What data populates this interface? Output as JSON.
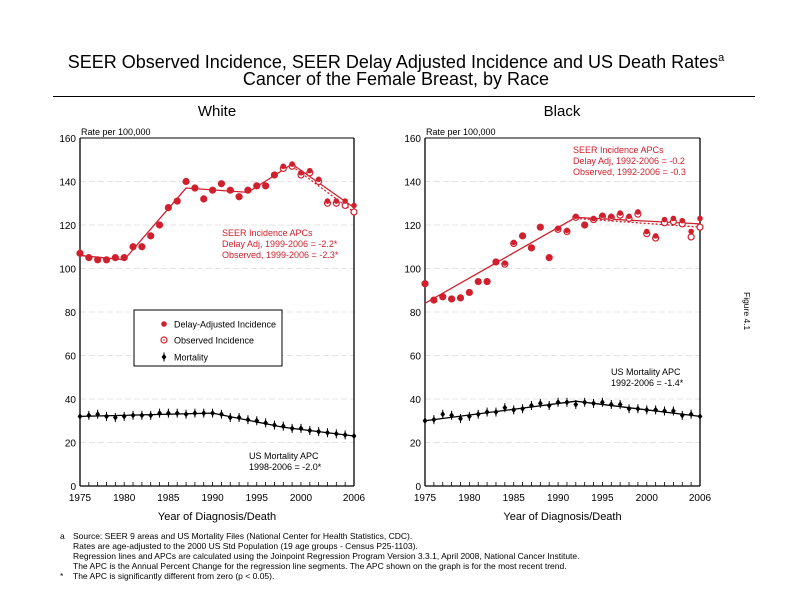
{
  "page": {
    "title_line1": "SEER Observed Incidence, SEER Delay Adjusted Incidence and US Death Rates",
    "title_superscript": "a",
    "title_line2": "Cancer of the Female Breast, by Race",
    "figure_label": "Figure 4.1",
    "footnotes": [
      {
        "mark": "a",
        "text": "Source: SEER 9 areas and US Mortality Files (National Center for Health Statistics, CDC)."
      },
      {
        "mark": "",
        "text": "Rates are age-adjusted to the 2000 US Std Population (19 age groups - Census P25-1103)."
      },
      {
        "mark": "",
        "text": "Regression lines and APCs are calculated using the Joinpoint Regression Program Version 3.3.1, April 2008, National Cancer Institute."
      },
      {
        "mark": "",
        "text": "The APC is the Annual Percent Change for the regression line segments. The APC shown on the graph is for the most recent trend."
      },
      {
        "mark": "*",
        "text": "The APC is significantly different from zero (p < 0.05)."
      }
    ]
  },
  "colors": {
    "incidence": "#d0202e",
    "mortality": "#000000",
    "grid": "#e4e4e4"
  },
  "chart_data": [
    {
      "type": "scatter",
      "title": "White",
      "ylabel": "Rate per 100,000",
      "xlabel": "Year of Diagnosis/Death",
      "xlim": [
        1975,
        2006
      ],
      "ylim": [
        0,
        160
      ],
      "xticks": [
        1975,
        1980,
        1985,
        1990,
        1995,
        2000,
        2006
      ],
      "yticks": [
        0,
        20,
        40,
        60,
        80,
        100,
        120,
        140,
        160
      ],
      "grid": true,
      "legend": {
        "placement": "center-left",
        "entries": [
          "Delay-Adjusted Incidence",
          "Observed Incidence",
          "Mortality"
        ]
      },
      "annotations": {
        "incidence": [
          "SEER Incidence APCs",
          "Delay Adj, 1999-2006 = -2.2*",
          "Observed, 1999-2006 = -2.3*"
        ],
        "mortality": [
          "US Mortality APC",
          "1998-2006 = -2.0*"
        ]
      },
      "x": [
        1975,
        1976,
        1977,
        1978,
        1979,
        1980,
        1981,
        1982,
        1983,
        1984,
        1985,
        1986,
        1987,
        1988,
        1989,
        1990,
        1991,
        1992,
        1993,
        1994,
        1995,
        1996,
        1997,
        1998,
        1999,
        2000,
        2001,
        2002,
        2003,
        2004,
        2005,
        2006
      ],
      "series": [
        {
          "name": "Delay-Adjusted Incidence",
          "values": [
            107,
            105,
            104,
            104,
            105,
            105,
            110,
            110,
            115,
            120,
            128,
            131,
            140,
            137,
            132,
            136,
            139,
            136,
            133,
            136,
            138,
            138,
            143,
            147,
            148,
            144,
            145,
            141,
            131,
            131,
            131,
            129
          ]
        },
        {
          "name": "Observed Incidence",
          "values": [
            107,
            105,
            104,
            104,
            105,
            105,
            110,
            110,
            115,
            120,
            128,
            131,
            140,
            137,
            132,
            136,
            139,
            136,
            133,
            136,
            138,
            138,
            143,
            146,
            147,
            143,
            144,
            140,
            130,
            130,
            129,
            126
          ]
        },
        {
          "name": "Mortality",
          "values": [
            32,
            32.5,
            33,
            32,
            31.5,
            32,
            32.5,
            32.5,
            32.5,
            33.5,
            33.5,
            33.5,
            33,
            33.5,
            33.5,
            33.5,
            33,
            31.5,
            31.5,
            30.5,
            30,
            29,
            28,
            27.5,
            26.5,
            26.5,
            25.5,
            25,
            24.5,
            24,
            23.5,
            23
          ]
        }
      ],
      "trend_lines": [
        {
          "name": "Delay-Adjusted Incidence trend",
          "style": "solid",
          "points": [
            [
              1975,
              106
            ],
            [
              1980,
              104
            ],
            [
              1987,
              137
            ],
            [
              1994,
              135
            ],
            [
              1999,
              148
            ],
            [
              2006,
              128
            ]
          ]
        },
        {
          "name": "Observed Incidence trend",
          "style": "dotted",
          "points": [
            [
              1999,
              147
            ],
            [
              2006,
              126
            ]
          ]
        },
        {
          "name": "Mortality trend",
          "style": "solid",
          "points": [
            [
              1975,
              32
            ],
            [
              1990,
              33.5
            ],
            [
              1998,
              27
            ],
            [
              2006,
              23
            ]
          ]
        }
      ]
    },
    {
      "type": "scatter",
      "title": "Black",
      "ylabel": "Rate per 100,000",
      "xlabel": "Year of Diagnosis/Death",
      "xlim": [
        1975,
        2006
      ],
      "ylim": [
        0,
        160
      ],
      "xticks": [
        1975,
        1980,
        1985,
        1990,
        1995,
        2000,
        2006
      ],
      "yticks": [
        0,
        20,
        40,
        60,
        80,
        100,
        120,
        140,
        160
      ],
      "grid": true,
      "annotations": {
        "incidence": [
          "SEER Incidence APCs",
          "Delay Adj, 1992-2006 = -0.2",
          "Observed, 1992-2006 = -0.3"
        ],
        "mortality": [
          "US Mortality APC",
          "1992-2006 = -1.4*"
        ]
      },
      "x": [
        1975,
        1976,
        1977,
        1978,
        1979,
        1980,
        1981,
        1982,
        1983,
        1984,
        1985,
        1986,
        1987,
        1988,
        1989,
        1990,
        1991,
        1992,
        1993,
        1994,
        1995,
        1996,
        1997,
        1998,
        1999,
        2000,
        2001,
        2002,
        2003,
        2004,
        2005,
        2006
      ],
      "series": [
        {
          "name": "Delay-Adjusted Incidence",
          "values": [
            93,
            85.5,
            87,
            86,
            86.5,
            89,
            94,
            94,
            103,
            102.5,
            112,
            115,
            109.5,
            119,
            105,
            118.5,
            117.5,
            124,
            120,
            123,
            124.5,
            124,
            125.5,
            124,
            126,
            117,
            115,
            122.5,
            123,
            122,
            117,
            123
          ]
        },
        {
          "name": "Observed Incidence",
          "values": [
            93,
            85.5,
            87,
            86,
            86.5,
            89,
            94,
            94,
            103,
            102,
            111.5,
            115,
            109.5,
            119,
            105,
            118,
            117,
            123.5,
            120,
            122.5,
            124,
            123.5,
            124.5,
            123,
            125,
            116,
            114,
            121,
            121.5,
            120.5,
            114.5,
            119
          ]
        },
        {
          "name": "Mortality",
          "values": [
            30,
            30.5,
            33,
            32.5,
            31,
            32,
            33,
            34,
            34,
            36,
            35,
            35.5,
            37,
            38,
            37,
            38.5,
            38.5,
            37.5,
            38.5,
            38,
            38.5,
            37.5,
            37.5,
            35.5,
            35.5,
            35,
            35,
            34.5,
            34.5,
            32.5,
            33,
            32
          ]
        }
      ],
      "trend_lines": [
        {
          "name": "Delay-Adjusted Incidence trend",
          "style": "solid",
          "points": [
            [
              1975,
              84
            ],
            [
              1992,
              123.5
            ],
            [
              2006,
              120.5
            ]
          ]
        },
        {
          "name": "Observed Incidence trend",
          "style": "dotted",
          "points": [
            [
              1992,
              123
            ],
            [
              2006,
              119
            ]
          ]
        },
        {
          "name": "Mortality trend",
          "style": "solid",
          "points": [
            [
              1975,
              30
            ],
            [
              1992,
              39
            ],
            [
              2006,
              32
            ]
          ]
        }
      ]
    }
  ]
}
